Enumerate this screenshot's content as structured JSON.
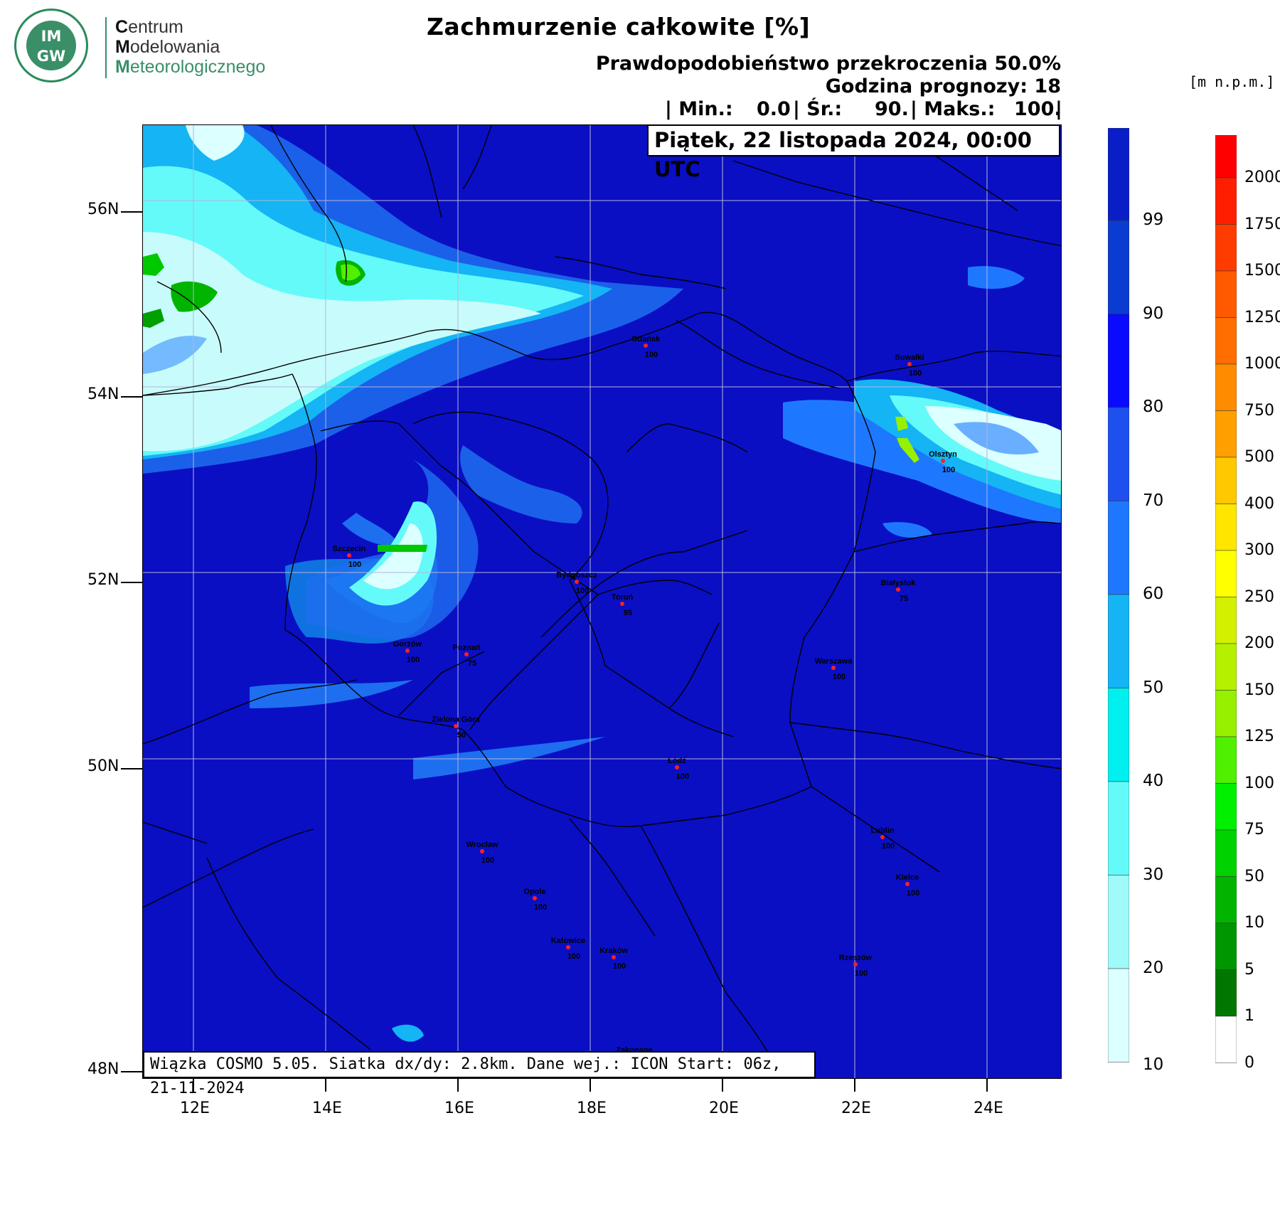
{
  "logo": {
    "badge_top": "IM",
    "badge_bottom": "GW",
    "line1_cap": "C",
    "line1_rest": "entrum",
    "line2_cap": "M",
    "line2_rest": "odelowania",
    "line3_cap": "M",
    "line3_rest": "eteorologicznego"
  },
  "header": {
    "title": "Zachmurzenie całkowite [%]",
    "probability": "Prawdopodobieństwo przekroczenia 50.0%",
    "forecast_hour": "Godzina prognozy: 18",
    "stats_min_label": "| Min.:",
    "stats_min": "0.0",
    "stats_avg_label": "| Śr.:",
    "stats_avg": "90.",
    "stats_max_label": "| Maks.:",
    "stats_max": "100.",
    "stats_end": "|"
  },
  "date_box": "Piątek, 22 listopada 2024, 00:00 UTC",
  "footer_box": "Wiązka COSMO 5.05. Siatka dx/dy: 2.8km. Dane wej.: ICON Start: 06z, 21-11-2024",
  "axes": {
    "lat_labels": [
      "56N",
      "54N",
      "52N",
      "50N",
      "48N"
    ],
    "lon_labels": [
      "12E",
      "14E",
      "16E",
      "18E",
      "20E",
      "22E",
      "24E"
    ]
  },
  "colorbar_cloud": {
    "labels": [
      "99",
      "90",
      "80",
      "70",
      "60",
      "50",
      "40",
      "30",
      "20",
      "10"
    ],
    "colors": [
      "#0a1ec8",
      "#0a3cd2",
      "#0a0aff",
      "#1e50f0",
      "#1e78ff",
      "#14b4f5",
      "#00f0f0",
      "#64fafa",
      "#a0fafa",
      "#dcffff"
    ]
  },
  "colorbar_terrain": {
    "unit": "[m n.p.m.]",
    "labels": [
      "2000",
      "1750",
      "1500",
      "1250",
      "1000",
      "750",
      "500",
      "400",
      "300",
      "250",
      "200",
      "150",
      "125",
      "100",
      "75",
      "50",
      "10",
      "5",
      "1",
      "0"
    ],
    "colors": [
      "#ff0000",
      "#ff1e00",
      "#ff3c00",
      "#ff5a00",
      "#ff6e00",
      "#ff8c00",
      "#ffa000",
      "#ffc800",
      "#ffe600",
      "#ffff00",
      "#d2f000",
      "#b4f000",
      "#96f000",
      "#50f000",
      "#00f000",
      "#00d200",
      "#00b400",
      "#009600",
      "#007800",
      "#ffffff"
    ]
  },
  "cities": [
    {
      "name": "Gdańsk",
      "value": "100"
    },
    {
      "name": "Suwałki",
      "value": "100"
    },
    {
      "name": "Olsztyn",
      "value": "100"
    },
    {
      "name": "Szczecin",
      "value": "100"
    },
    {
      "name": "Bydgoszcz",
      "value": "100"
    },
    {
      "name": "Toruń",
      "value": "95"
    },
    {
      "name": "Białystok",
      "value": "75"
    },
    {
      "name": "Gorzów",
      "value": "100"
    },
    {
      "name": "Poznań",
      "value": "75"
    },
    {
      "name": "Warszawa",
      "value": "100"
    },
    {
      "name": "Zielona Góra",
      "value": "50"
    },
    {
      "name": "Łódź",
      "value": "100"
    },
    {
      "name": "Lublin",
      "value": "100"
    },
    {
      "name": "Wrocław",
      "value": "100"
    },
    {
      "name": "Kielce",
      "value": "100"
    },
    {
      "name": "Opole",
      "value": "100"
    },
    {
      "name": "Katowice",
      "value": "100"
    },
    {
      "name": "Kraków",
      "value": "100"
    },
    {
      "name": "Rzeszów",
      "value": "100"
    },
    {
      "name": "Zakopane",
      "value": "100"
    }
  ]
}
